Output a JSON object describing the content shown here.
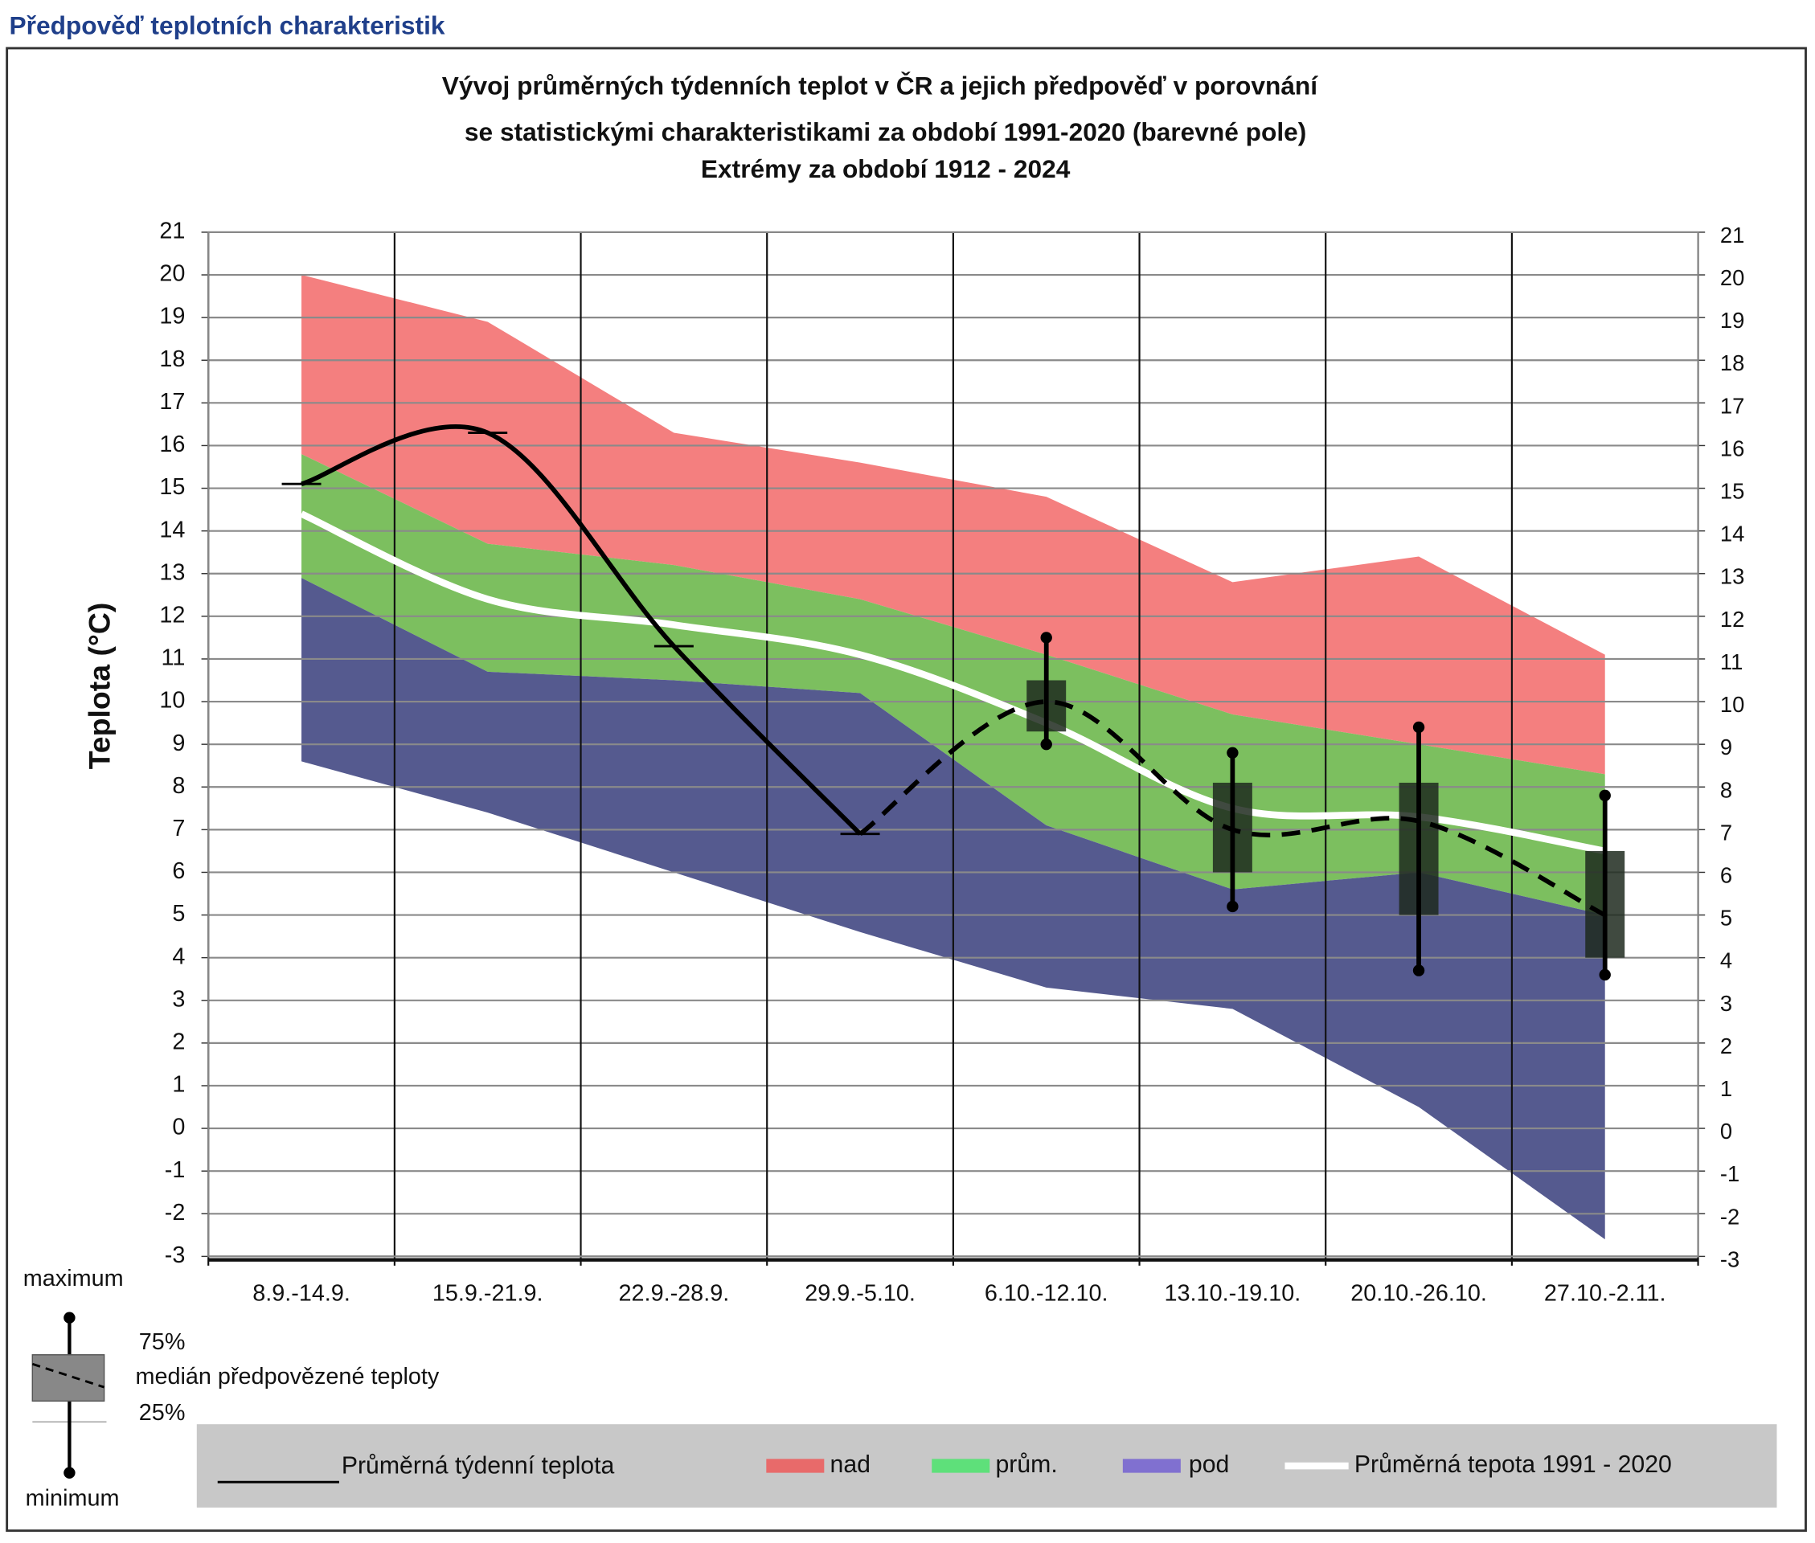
{
  "header": "Předpověď teplotních charakteristik",
  "chart_data": {
    "type": "band-forecast",
    "title": [
      "Vývoj průměrných týdenních teplot v ČR a jejich předpověď v porovnání",
      "se statistickými charakteristikami za období 1991-2020 (barevné pole)",
      "Extrémy za období 1912 - 2024"
    ],
    "y_label": "Teplota (°C)",
    "categories": [
      "8.9.-14.9.",
      "15.9.-21.9.",
      "22.9.-28.9.",
      "29.9.-5.10.",
      "6.10.-12.10.",
      "13.10.-19.10.",
      "20.10.-26.10.",
      "27.10.-2.11."
    ],
    "bands": [
      {
        "name": "nad",
        "color": "#f47f7f",
        "legend_color": "#e86a6a",
        "values": [
          20.0,
          18.9,
          16.3,
          15.6,
          14.8,
          12.8,
          13.4,
          11.1
        ]
      },
      {
        "name": "prům.",
        "color": "#7cbf5f",
        "legend_color": "#5ee07a",
        "values": [
          15.8,
          13.7,
          13.2,
          12.4,
          11.1,
          9.7,
          9.0,
          8.3
        ]
      },
      {
        "name": "pod",
        "color": "#555a8f",
        "legend_color": "#8070d0",
        "values": [
          12.9,
          10.7,
          10.5,
          10.2,
          7.1,
          5.6,
          6.0,
          5.0
        ],
        "min_values": [
          8.6,
          7.4,
          6.0,
          4.6,
          3.3,
          2.8,
          0.5,
          -2.6
        ]
      }
    ],
    "series": [
      {
        "name": "Průměrná týdenní teplota",
        "color": "#000000",
        "values": [
          15.1,
          16.3,
          11.3,
          6.9,
          null,
          null,
          null,
          null
        ]
      },
      {
        "name": "Průměrná tepota 1991 - 2020",
        "color": "#ffffff",
        "values": [
          14.4,
          12.4,
          11.8,
          11.1,
          9.5,
          7.5,
          7.3,
          6.5
        ]
      }
    ],
    "forecast": {
      "color": "#1e2a1e",
      "median": [
        null,
        null,
        null,
        6.9,
        10.0,
        7.0,
        7.2,
        5.0
      ],
      "q25": [
        null,
        null,
        null,
        null,
        9.3,
        6.0,
        5.0,
        4.0
      ],
      "q75": [
        null,
        null,
        null,
        null,
        10.5,
        8.1,
        8.1,
        6.5
      ],
      "min": [
        null,
        null,
        null,
        null,
        9.0,
        5.2,
        3.7,
        3.6
      ],
      "max": [
        null,
        null,
        null,
        null,
        11.5,
        8.8,
        9.4,
        7.8
      ]
    },
    "key": {
      "maximum": "maximum",
      "q75": "75%",
      "median": "medián předpovězené teploty",
      "q25": "25%",
      "minimum": "minimum"
    },
    "ylim": [
      -3,
      21
    ],
    "yticks": [
      -3,
      -2,
      -1,
      0,
      1,
      2,
      3,
      4,
      5,
      6,
      7,
      8,
      9,
      10,
      11,
      12,
      13,
      14,
      15,
      16,
      17,
      18,
      19,
      20,
      21
    ],
    "y2lim": [
      -3,
      21
    ],
    "y2ticks": [
      -3,
      -2,
      -1,
      0,
      1,
      2,
      3,
      4,
      5,
      6,
      7,
      8,
      9,
      10,
      11,
      12,
      13,
      14,
      15,
      16,
      17,
      18,
      19,
      20,
      21
    ],
    "grid": true
  }
}
